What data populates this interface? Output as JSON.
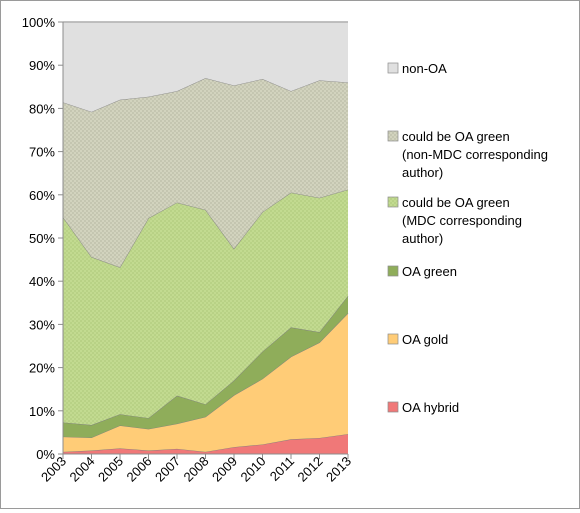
{
  "chart_data": {
    "type": "area",
    "stacked": true,
    "percent": true,
    "x": [
      "2003",
      "2004",
      "2005",
      "2006",
      "2007",
      "2008",
      "2009",
      "2010",
      "2011",
      "2012",
      "2013"
    ],
    "ylim": [
      0,
      100
    ],
    "yticks": [
      "0%",
      "10%",
      "20%",
      "30%",
      "40%",
      "50%",
      "60%",
      "70%",
      "80%",
      "90%",
      "100%"
    ],
    "grid": true,
    "legend_position": "right",
    "series": [
      {
        "name": "OA hybrid",
        "color": "#f07878",
        "pattern": "solid",
        "values": [
          0.5,
          0.8,
          1.3,
          0.8,
          1.2,
          0.5,
          1.6,
          2.2,
          3.4,
          3.7,
          4.6
        ]
      },
      {
        "name": "OA gold",
        "color": "#ffcc77",
        "pattern": "solid",
        "values": [
          3.5,
          3.0,
          5.3,
          5.0,
          5.8,
          8.1,
          12.0,
          15.2,
          19.1,
          22.1,
          28.0
        ]
      },
      {
        "name": "OA green",
        "color": "#8fad5a",
        "pattern": "solid",
        "values": [
          3.3,
          2.9,
          2.6,
          2.5,
          6.5,
          2.9,
          3.4,
          6.3,
          6.8,
          2.4,
          4.0
        ]
      },
      {
        "name": "could be OA green (MDC corresponding author)",
        "color": "#c3dc92",
        "pattern": "crosshatch",
        "values": [
          47.5,
          38.9,
          34.0,
          46.3,
          44.7,
          45.0,
          30.5,
          32.3,
          31.2,
          31.1,
          24.6
        ]
      },
      {
        "name": "could be OA green (non-MDC corresponding author)",
        "color": "#d2d3bd",
        "pattern": "crosshatch",
        "values": [
          26.6,
          33.6,
          38.8,
          28.1,
          25.8,
          30.5,
          37.8,
          30.8,
          23.5,
          27.2,
          24.8
        ]
      },
      {
        "name": "non-OA",
        "color": "#e0e0e0",
        "pattern": "solid",
        "values": [
          18.6,
          20.8,
          18.0,
          17.3,
          16.0,
          13.0,
          14.7,
          13.2,
          16.0,
          13.5,
          14.0
        ]
      }
    ],
    "legend_lines": [
      [
        "non-OA"
      ],
      [
        "could be OA green",
        "(non-MDC corresponding",
        "author)"
      ],
      [
        "could be OA green",
        "(MDC corresponding",
        "author)"
      ],
      [
        "OA green"
      ],
      [
        "OA gold"
      ],
      [
        "OA hybrid"
      ]
    ]
  }
}
